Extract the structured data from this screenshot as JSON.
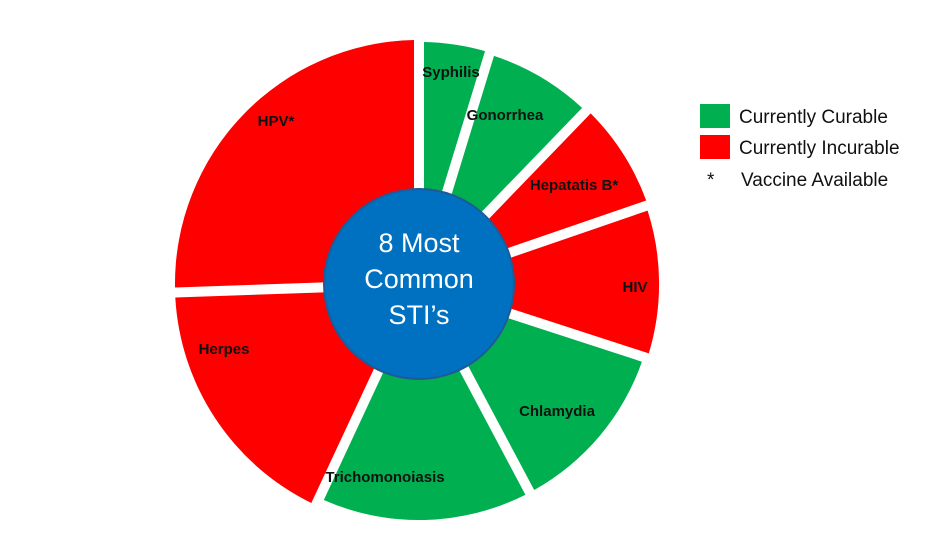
{
  "title_lines": [
    "8 Most",
    "Common",
    "STI’s"
  ],
  "colors": {
    "curable": "#00b050",
    "incurable": "#ff0000",
    "center": "#0070c0",
    "center_border": "#1f5a96"
  },
  "segments": [
    {
      "label": "Syphilis",
      "status": "curable"
    },
    {
      "label": "Gonorrhea",
      "status": "curable"
    },
    {
      "label": "Hepatatis B*",
      "status": "incurable"
    },
    {
      "label": "HIV",
      "status": "incurable"
    },
    {
      "label": "Chlamydia",
      "status": "curable"
    },
    {
      "label": "Trichomonoiasis",
      "status": "curable"
    },
    {
      "label": "Herpes",
      "status": "incurable"
    },
    {
      "label": "HPV*",
      "status": "incurable"
    }
  ],
  "legend": {
    "curable_label": "Currently Curable",
    "incurable_label": "Currently Incurable",
    "vaccine_symbol": "*",
    "vaccine_label": "Vaccine Available"
  }
}
